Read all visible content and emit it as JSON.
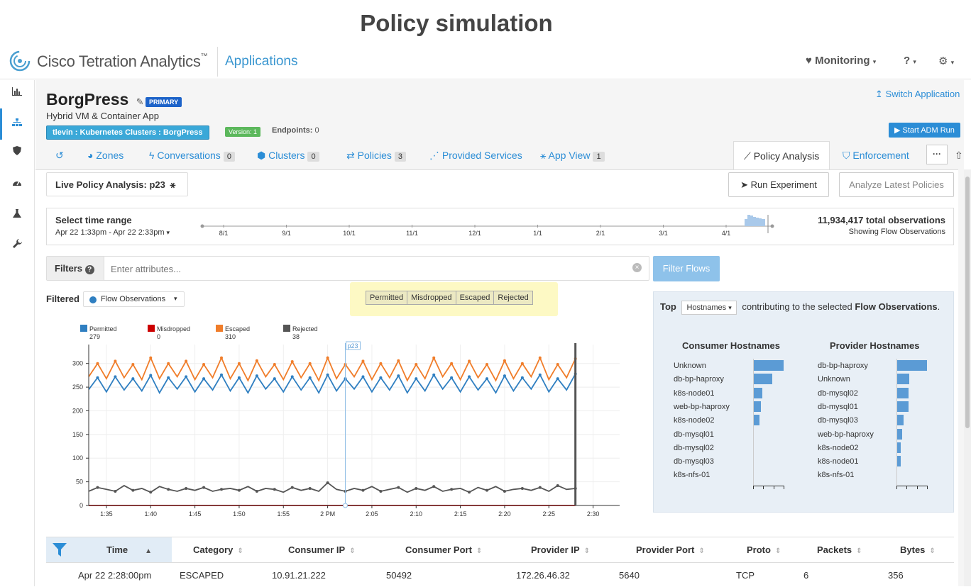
{
  "slide_title": "Policy simulation",
  "brand": {
    "name": "Cisco Tetration Analytics",
    "trademark": "™",
    "section": "Applications"
  },
  "topnav": {
    "monitoring": "Monitoring",
    "help": "?"
  },
  "app": {
    "name": "BorgPress",
    "badge": "PRIMARY",
    "description": "Hybrid VM & Container App",
    "scope": "tlevin : Kubernetes Clusters : BorgPress",
    "version": "Version: 1",
    "endpoints_label": "Endpoints:",
    "endpoints_value": "0",
    "switch_label": "Switch Application",
    "start_adm": "Start ADM Run"
  },
  "tabs": [
    {
      "label": "Zones",
      "count": ""
    },
    {
      "label": "Conversations",
      "count": "0"
    },
    {
      "label": "Clusters",
      "count": "0"
    },
    {
      "label": "Policies",
      "count": "3"
    },
    {
      "label": "Provided Services",
      "count": ""
    },
    {
      "label": "App View",
      "count": "1"
    },
    {
      "label": "Policy Analysis",
      "count": ""
    },
    {
      "label": "Enforcement",
      "count": ""
    }
  ],
  "analysis": {
    "live_label": "Live Policy Analysis: p23",
    "run_experiment": "Run Experiment",
    "analyze_latest": "Analyze Latest Policies"
  },
  "timerange": {
    "label": "Select time range",
    "value": "Apr 22 1:33pm - Apr 22 2:33pm",
    "ticks": [
      "8/1",
      "9/1",
      "10/1",
      "11/1",
      "12/1",
      "1/1",
      "2/1",
      "3/1",
      "4/1"
    ],
    "total": "11,934,417 total observations",
    "showing": "Showing Flow Observations"
  },
  "filters": {
    "label": "Filters",
    "placeholder": "Enter attributes...",
    "button": "Filter Flows"
  },
  "chart_header": {
    "filtered_label": "Filtered",
    "dropdown": "Flow Observations",
    "toggle_buttons": [
      "Permitted",
      "Misdropped",
      "Escaped",
      "Rejected"
    ]
  },
  "chart_data": {
    "type": "line",
    "legend": [
      {
        "name": "Permitted",
        "count": "279",
        "color": "#2f7fc1"
      },
      {
        "name": "Misdropped",
        "count": "0",
        "color": "#cc0000"
      },
      {
        "name": "Escaped",
        "count": "310",
        "color": "#f07d2a"
      },
      {
        "name": "Rejected",
        "count": "38",
        "color": "#555555"
      }
    ],
    "x_ticks": [
      "1:35",
      "1:40",
      "1:45",
      "1:50",
      "1:55",
      "2 PM",
      "2:05",
      "2:10",
      "2:15",
      "2:20",
      "2:25",
      "2:30"
    ],
    "y_ticks": [
      0,
      50,
      100,
      150,
      200,
      250,
      300
    ],
    "ylim": [
      0,
      340
    ],
    "xlim_minutes": [
      0,
      60
    ],
    "marker": {
      "label": "p23",
      "x_minute": 29
    },
    "end_marker_minute": 55,
    "series": [
      {
        "name": "Permitted",
        "color": "#2f7fc1",
        "values": [
          245,
          270,
          240,
          272,
          244,
          268,
          242,
          275,
          238,
          270,
          246,
          272,
          240,
          268,
          244,
          276,
          242,
          270,
          238,
          274,
          246,
          268,
          240,
          272,
          244,
          270,
          238,
          276,
          242,
          268,
          246,
          272,
          240,
          270,
          244,
          274,
          238,
          268,
          242,
          276,
          246,
          270,
          240,
          272,
          244,
          268,
          238,
          274,
          242,
          270,
          246,
          276,
          240,
          268,
          244,
          278
        ]
      },
      {
        "name": "Escaped",
        "color": "#f07d2a",
        "values": [
          272,
          300,
          268,
          305,
          270,
          298,
          266,
          312,
          268,
          300,
          272,
          305,
          266,
          298,
          270,
          312,
          268,
          300,
          264,
          306,
          272,
          298,
          266,
          304,
          270,
          300,
          264,
          312,
          268,
          298,
          272,
          305,
          266,
          300,
          270,
          306,
          264,
          298,
          268,
          312,
          272,
          300,
          266,
          305,
          270,
          298,
          264,
          306,
          268,
          300,
          272,
          312,
          266,
          298,
          270,
          310
        ]
      },
      {
        "name": "Rejected",
        "color": "#555555",
        "values": [
          30,
          38,
          34,
          30,
          42,
          32,
          36,
          28,
          40,
          34,
          30,
          36,
          32,
          38,
          30,
          34,
          36,
          32,
          40,
          30,
          36,
          34,
          28,
          38,
          32,
          36,
          30,
          48,
          34,
          30,
          36,
          32,
          40,
          30,
          34,
          38,
          28,
          36,
          32,
          40,
          30,
          34,
          36,
          28,
          38,
          32,
          40,
          30,
          34,
          36,
          32,
          38,
          30,
          42,
          34,
          36
        ]
      },
      {
        "name": "Misdropped",
        "color": "#cc0000",
        "values": [
          0,
          0,
          0,
          0,
          0,
          0,
          0,
          0,
          0,
          0,
          0,
          0,
          0,
          0,
          0,
          0,
          0,
          0,
          0,
          0,
          0,
          0,
          0,
          0,
          0,
          0,
          0,
          0,
          0,
          0,
          0,
          0,
          0,
          0,
          0,
          0,
          0,
          0,
          0,
          0,
          0,
          0,
          0,
          0,
          0,
          0,
          0,
          0,
          0,
          0,
          0,
          0,
          0,
          0,
          0,
          0
        ]
      }
    ]
  },
  "top_panel": {
    "top_label": "Top",
    "dropdown": "Hostnames",
    "text_middle": "contributing to the selected",
    "text_bold": "Flow Observations",
    "text_end": ".",
    "consumer_title": "Consumer Hostnames",
    "provider_title": "Provider Hostnames",
    "consumers": [
      {
        "name": "Unknown",
        "value": 1.0
      },
      {
        "name": "db-bp-haproxy",
        "value": 0.62
      },
      {
        "name": "k8s-node01",
        "value": 0.3
      },
      {
        "name": "web-bp-haproxy",
        "value": 0.25
      },
      {
        "name": "k8s-node02",
        "value": 0.22
      },
      {
        "name": "db-mysql01",
        "value": 0.03
      },
      {
        "name": "db-mysql02",
        "value": 0.03
      },
      {
        "name": "db-mysql03",
        "value": 0.02
      },
      {
        "name": "k8s-nfs-01",
        "value": 0.02
      }
    ],
    "providers": [
      {
        "name": "db-bp-haproxy",
        "value": 1.0
      },
      {
        "name": "Unknown",
        "value": 0.42
      },
      {
        "name": "db-mysql02",
        "value": 0.4
      },
      {
        "name": "db-mysql01",
        "value": 0.4
      },
      {
        "name": "db-mysql03",
        "value": 0.24
      },
      {
        "name": "web-bp-haproxy",
        "value": 0.18
      },
      {
        "name": "k8s-node02",
        "value": 0.15
      },
      {
        "name": "k8s-node01",
        "value": 0.15
      },
      {
        "name": "k8s-nfs-01",
        "value": 0.02
      }
    ]
  },
  "table": {
    "headers": [
      "Time",
      "Category",
      "Consumer IP",
      "Consumer Port",
      "Provider IP",
      "Provider Port",
      "Proto",
      "Packets",
      "Bytes"
    ],
    "rows": [
      [
        "Apr 22 2:28:00pm",
        "ESCAPED",
        "10.91.21.222",
        "50492",
        "172.26.46.32",
        "5640",
        "TCP",
        "6",
        "356"
      ]
    ]
  }
}
